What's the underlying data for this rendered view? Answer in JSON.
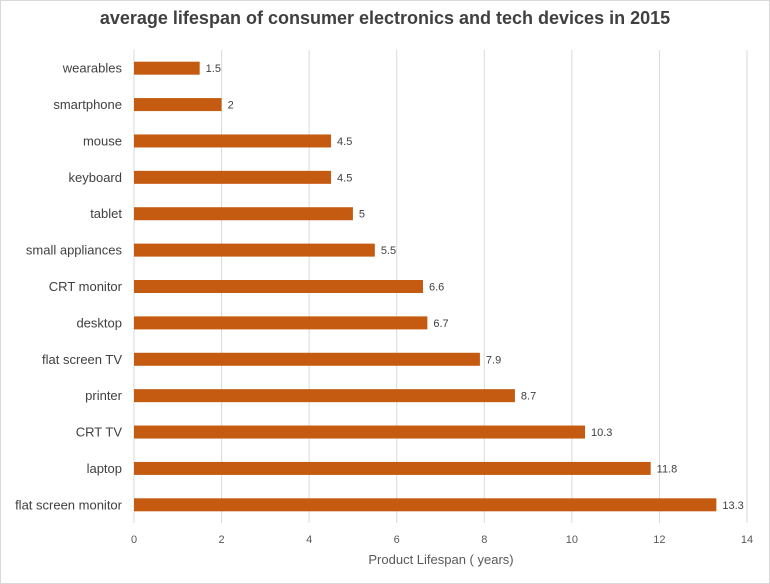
{
  "chart_data": {
    "type": "bar",
    "orientation": "horizontal",
    "title": "average lifespan of consumer electronics and tech devices in 2015",
    "xlabel": "Product Lifespan ( years)",
    "ylabel": "",
    "xlim": [
      0,
      14
    ],
    "ticks": [
      "0",
      "2",
      "4",
      "6",
      "8",
      "10",
      "12",
      "14"
    ],
    "grid": true,
    "legend": "none",
    "bar_color": "#c55a11",
    "categories": [
      "wearables",
      "smartphone",
      "mouse",
      "keyboard",
      "tablet",
      "small appliances",
      "CRT monitor",
      "desktop",
      "flat screen TV",
      "printer",
      "CRT TV",
      "laptop",
      "flat screen monitor"
    ],
    "values": [
      1.5,
      2,
      4.5,
      4.5,
      5,
      5.5,
      6.6,
      6.7,
      7.9,
      8.7,
      10.3,
      11.8,
      13.3
    ],
    "data_labels": [
      "1.5",
      "2",
      "4.5",
      "4.5",
      "5",
      "5.5",
      "6.6",
      "6.7",
      "7.9",
      "8.7",
      "10.3",
      "11.8",
      "13.3"
    ]
  }
}
